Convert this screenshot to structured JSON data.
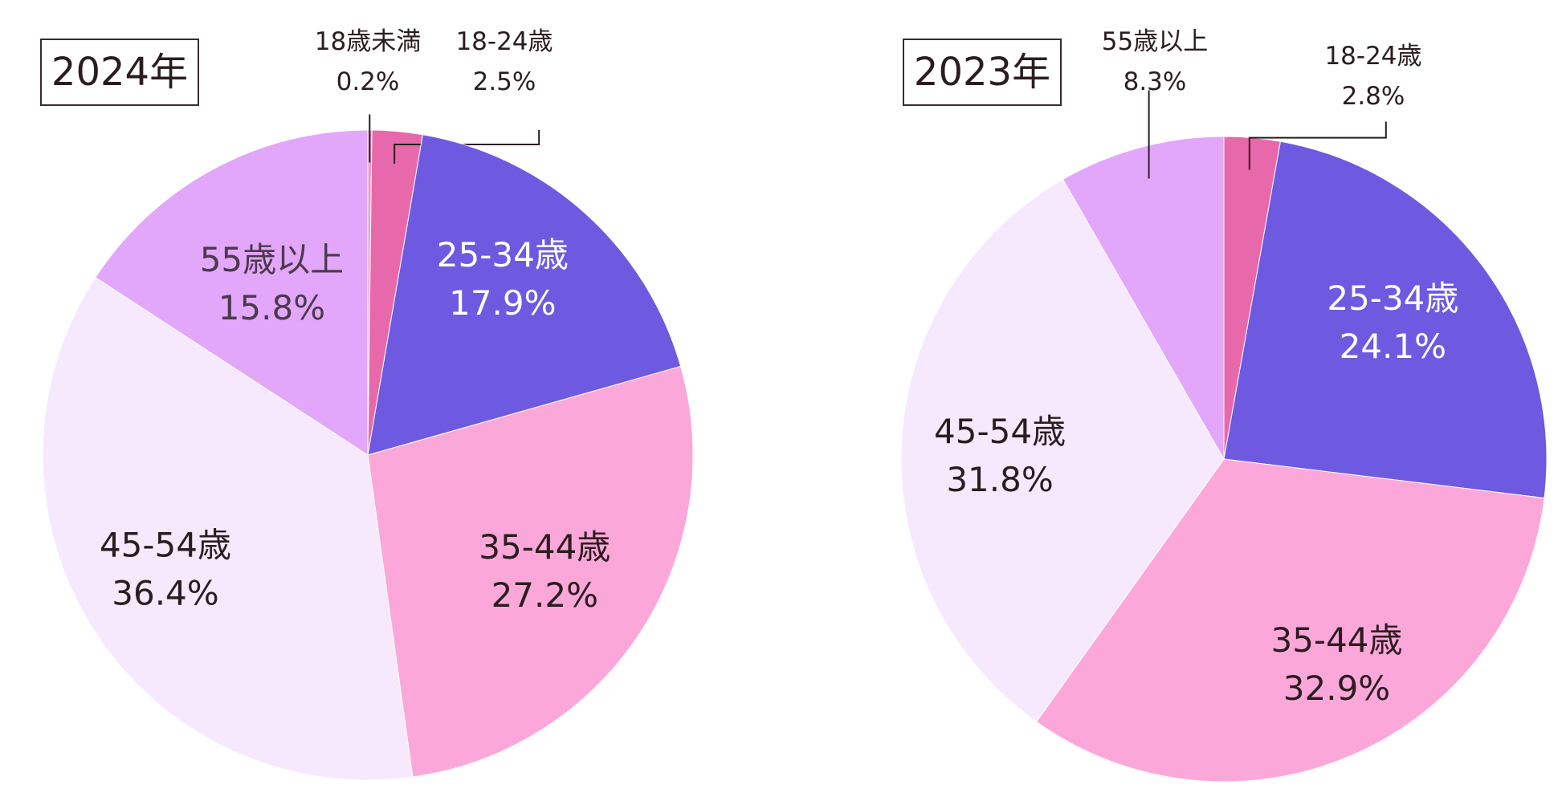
{
  "chart_data": [
    {
      "type": "pie",
      "title": "2024年",
      "categories": [
        "18歳未満",
        "18-24歳",
        "25-34歳",
        "35-44歳",
        "45-54歳",
        "55歳以上"
      ],
      "values": [
        0.2,
        2.5,
        17.9,
        27.2,
        36.4,
        15.8
      ],
      "value_labels": [
        "0.2%",
        "2.5%",
        "17.9%",
        "27.2%",
        "36.4%",
        "15.8%"
      ],
      "colors": [
        "#f09ac8",
        "#e869ab",
        "#6d5ae0",
        "#fca7d9",
        "#f6e9fd",
        "#e2a7fb"
      ],
      "label_colors": [
        "#2b1d1f",
        "#2b1d1f",
        "#ffffff",
        "#2b1d1f",
        "#2b1d1f",
        "#4a3a4c"
      ],
      "label_placement": [
        "outside",
        "outside",
        "inside",
        "inside",
        "inside",
        "inside"
      ]
    },
    {
      "type": "pie",
      "title": "2023年",
      "categories": [
        "18-24歳",
        "25-34歳",
        "35-44歳",
        "45-54歳",
        "55歳以上"
      ],
      "values": [
        2.8,
        24.1,
        32.9,
        31.8,
        8.3
      ],
      "value_labels": [
        "2.8%",
        "24.1%",
        "32.9%",
        "31.8%",
        "8.3%"
      ],
      "colors": [
        "#e869ab",
        "#6d5ae0",
        "#fca7d9",
        "#f6e9fd",
        "#e2a7fb"
      ],
      "label_colors": [
        "#2b1d1f",
        "#ffffff",
        "#2b1d1f",
        "#2b1d1f",
        "#2b1d1f"
      ],
      "label_placement": [
        "outside",
        "inside",
        "inside",
        "inside",
        "outside"
      ]
    }
  ]
}
